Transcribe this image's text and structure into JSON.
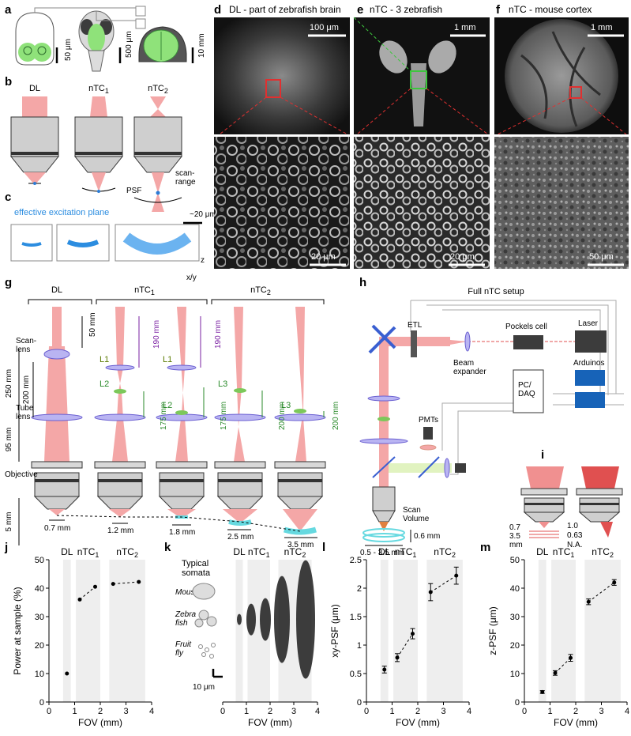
{
  "panel_labels": {
    "a": "a",
    "b": "b",
    "c": "c",
    "d": "d",
    "e": "e",
    "f": "f",
    "g": "g",
    "h": "h",
    "i": "i",
    "j": "j",
    "k": "k",
    "l": "l",
    "m": "m"
  },
  "panel_a": {
    "scales": [
      "50 μm",
      "500 μm",
      "10 mm"
    ]
  },
  "panel_b": {
    "columns": [
      "DL",
      "nTC",
      "nTC"
    ],
    "subs": [
      "1",
      "2"
    ],
    "psf": "PSF",
    "scan_range": "scan-\nrange"
  },
  "panel_c": {
    "title": "effective excitation plane",
    "scale": "~20 μm",
    "z": "z",
    "xy": "x/y"
  },
  "panel_d": {
    "title": "DL - part of zebrafish brain",
    "scale_top": "100 μm",
    "scale_bottom": "20 μm"
  },
  "panel_e": {
    "title": "nTC - 3 zebrafish",
    "scale_top": "1 mm",
    "scale_bottom": "20 μm"
  },
  "panel_f": {
    "title": "nTC - mouse cortex",
    "scale_top": "1 mm",
    "scale_bottom": "50 μm"
  },
  "panel_g": {
    "headers": [
      "DL",
      "nTC",
      "nTC"
    ],
    "subs": [
      "1",
      "2"
    ],
    "scan_lens": "Scan-\nlens",
    "tube_lens": "Tube\nlens",
    "objective": "Objective",
    "dims_left": [
      "250 mm",
      "200 mm",
      "95 mm",
      "5 mm",
      "50 mm"
    ],
    "lens_labels": [
      "L1",
      "L2",
      "L1",
      "L2",
      "L3",
      "L3"
    ],
    "purple_dims": [
      "190 mm",
      "190 mm"
    ],
    "green_dims": [
      "175 mm",
      "175 mm",
      "200 mm",
      "200 mm"
    ],
    "fov": [
      "0.7 mm",
      "1.2 mm",
      "1.8 mm",
      "2.5 mm",
      "3.5 mm"
    ]
  },
  "panel_h": {
    "title": "Full nTC setup",
    "labels": {
      "etl": "ETL",
      "pockels": "Pockels cell",
      "laser": "Laser",
      "arduinos": "Arduinos",
      "beam_expander": "Beam\nexpander",
      "pc": "PC/\nDAQ",
      "pmts": "PMTs",
      "scan_volume": "Scan\nVolume",
      "depth": "0.6 mm",
      "range": "0.5 - 3.5 mm"
    }
  },
  "panel_i": {
    "labels": [
      "0.7",
      "3.5\nmm",
      "1.0",
      "0.63",
      "N.A."
    ]
  },
  "colors": {
    "beam": "#f4a7a7",
    "beam_dark": "#e05050",
    "lens": "#b9b4f2",
    "green": "#7cc85a",
    "cyan": "#66d9e0",
    "panel_bg": "#eeeeee",
    "purple": "#7a1fa2",
    "green_dim": "#2a8a2a"
  },
  "panel_k": {
    "somata_title": "Typical\nsomata",
    "species": [
      "Mouse",
      "Zebra\nfish",
      "Fruit\nfly"
    ],
    "scale": "10 μm"
  },
  "chart_data": [
    {
      "type": "scatter",
      "panel": "j",
      "ylabel": "Power at sample (%)",
      "xlabel": "FOV (mm)",
      "xlim": [
        0,
        4
      ],
      "ylim": [
        0,
        50
      ],
      "xticks": [
        0,
        1,
        2,
        3,
        4
      ],
      "yticks": [
        0,
        10,
        20,
        30,
        40,
        50
      ],
      "regions": [
        "DL",
        "nTC",
        "nTC"
      ],
      "x": [
        0.7,
        1.2,
        1.8,
        2.5,
        3.5
      ],
      "y": [
        10,
        36,
        40.5,
        41.5,
        42.2
      ]
    },
    {
      "type": "scatter",
      "panel": "k",
      "xlabel": "FOV (mm)",
      "xlim": [
        0,
        4
      ],
      "xticks": [
        0,
        1,
        2,
        3,
        4
      ],
      "regions": [
        "DL",
        "nTC",
        "nTC"
      ],
      "x": [
        0.7,
        1.2,
        1.8,
        2.5,
        3.5
      ]
    },
    {
      "type": "scatter",
      "panel": "l",
      "ylabel": "xy-PSF (μm)",
      "xlabel": "FOV (mm)",
      "xlim": [
        0,
        4
      ],
      "ylim": [
        0,
        2.5
      ],
      "xticks": [
        0,
        1,
        2,
        3,
        4
      ],
      "yticks": [
        0,
        0.5,
        1.0,
        1.5,
        2.0,
        2.5
      ],
      "regions": [
        "DL",
        "nTC",
        "nTC"
      ],
      "x": [
        0.7,
        1.2,
        1.8,
        2.5,
        3.5
      ],
      "y": [
        0.57,
        0.78,
        1.2,
        1.93,
        2.22
      ],
      "err": [
        0.06,
        0.07,
        0.09,
        0.15,
        0.15
      ]
    },
    {
      "type": "scatter",
      "panel": "m",
      "ylabel": "z-PSF (μm)",
      "xlabel": "FOV (mm)",
      "xlim": [
        0,
        4
      ],
      "ylim": [
        0,
        50
      ],
      "xticks": [
        0,
        1,
        2,
        3,
        4
      ],
      "yticks": [
        0,
        10,
        20,
        30,
        40,
        50
      ],
      "regions": [
        "DL",
        "nTC",
        "nTC"
      ],
      "x": [
        0.7,
        1.2,
        1.8,
        2.5,
        3.5
      ],
      "y": [
        3.5,
        10.2,
        15.5,
        35.2,
        42
      ],
      "err": [
        0.5,
        0.8,
        1.2,
        1.0,
        1.0
      ]
    }
  ]
}
